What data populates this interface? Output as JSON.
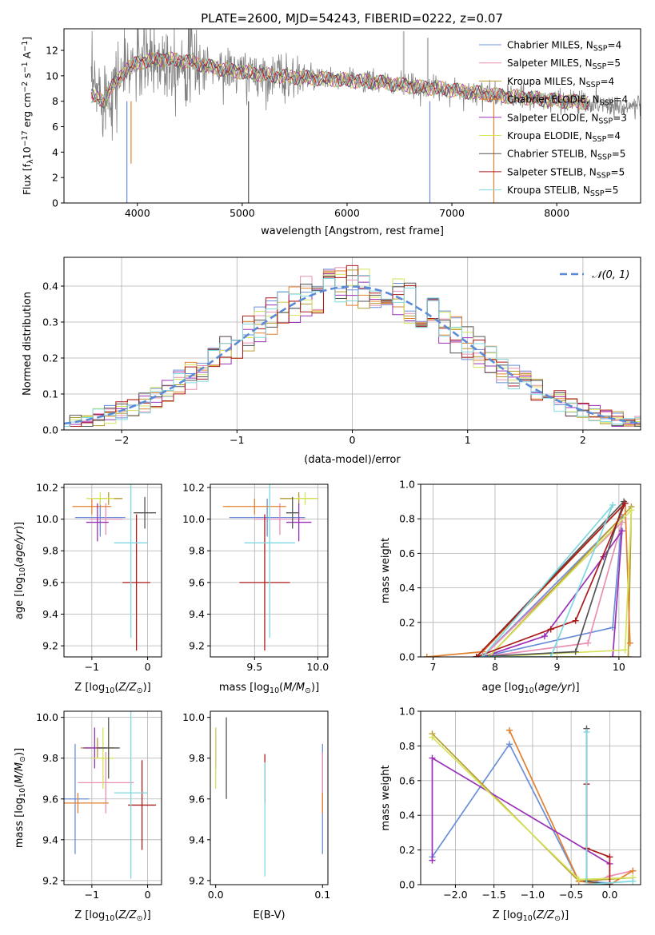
{
  "figure": {
    "title": "PLATE=2600, MJD=54243, FIBERID=0222, z=0.07"
  },
  "colors": {
    "Chabrier MILES": "#6a8fd8",
    "Salpeter MILES": "#e88fb4",
    "Kroupa MILES": "#b79a2e",
    "Chabrier ELODIE": "#e3802f",
    "Salpeter ELODIE": "#9b30b8",
    "Kroupa ELODIE": "#d4e35a",
    "Chabrier STELIB": "#555555",
    "Salpeter STELIB": "#aa1a1a",
    "Kroupa STELIB": "#7fd8e0",
    "data": "#808080",
    "grid": "#b0b0b0"
  },
  "chart_data": [
    {
      "id": "spectrum",
      "type": "line",
      "title": "PLATE=2600, MJD=54243, FIBERID=0222, z=0.07",
      "xlabel": "wavelength [Angstrom, rest frame]",
      "ylabel": "Flux [f_λ 10^-17 erg cm^-2 s^-1 A^-1]",
      "xlim": [
        3300,
        8800
      ],
      "ylim": [
        0,
        13.7
      ],
      "xticks": [
        4000,
        5000,
        6000,
        7000,
        8000
      ],
      "yticks": [
        0,
        2,
        4,
        6,
        8,
        10,
        12
      ],
      "grid": false,
      "legend_position": "top-right",
      "legend": [
        {
          "name": "Chabrier MILES",
          "label": "Chabrier MILES, N",
          "sub": "SSP",
          "tail": "=4"
        },
        {
          "name": "Salpeter MILES",
          "label": "Salpeter MILES, N",
          "sub": "SSP",
          "tail": "=5"
        },
        {
          "name": "Kroupa MILES",
          "label": "Kroupa MILES, N",
          "sub": "SSP",
          "tail": "=4"
        },
        {
          "name": "Chabrier ELODIE",
          "label": "Chabrier ELODIE, N",
          "sub": "SSP",
          "tail": "=4"
        },
        {
          "name": "Salpeter ELODIE",
          "label": "Salpeter ELODIE, N",
          "sub": "SSP",
          "tail": "=3"
        },
        {
          "name": "Kroupa ELODIE",
          "label": "Kroupa ELODIE, N",
          "sub": "SSP",
          "tail": "=4"
        },
        {
          "name": "Chabrier STELIB",
          "label": "Chabrier STELIB, N",
          "sub": "SSP",
          "tail": "=5"
        },
        {
          "name": "Salpeter STELIB",
          "label": "Salpeter STELIB, N",
          "sub": "SSP",
          "tail": "=5"
        },
        {
          "name": "Kroupa STELIB",
          "label": "Kroupa STELIB, N",
          "sub": "SSP",
          "tail": "=5"
        }
      ],
      "continuum": {
        "x": [
          3560,
          3700,
          3800,
          3900,
          4000,
          4100,
          4200,
          4300,
          4500,
          4700,
          4900,
          5100,
          5300,
          5500,
          5700,
          5900,
          6100,
          6300,
          6500,
          6700,
          6900,
          7100,
          7300,
          7500,
          7700,
          7900,
          8100,
          8300,
          8500,
          8700
        ],
        "y": [
          9.0,
          8.6,
          9.5,
          10.6,
          11.0,
          11.2,
          11.3,
          11.3,
          11.1,
          10.7,
          10.4,
          10.2,
          10.0,
          9.9,
          9.8,
          9.7,
          9.6,
          9.5,
          9.3,
          9.1,
          9.0,
          8.8,
          8.6,
          8.4,
          8.3,
          8.1,
          8.0,
          7.9,
          7.7,
          7.6
        ]
      },
      "model_x_range": [
        3560,
        8300
      ],
      "data_x_range": [
        3560,
        8800
      ],
      "dips": [
        {
          "x": 3900,
          "y": 0
        },
        {
          "x": 3940,
          "y": 3.1
        },
        {
          "x": 5060,
          "y": 0
        },
        {
          "x": 6790,
          "y": 0
        },
        {
          "x": 7400,
          "y": 0
        }
      ],
      "spikes": [
        {
          "x": 6540,
          "y": 13.5
        },
        {
          "x": 6770,
          "y": 13.0
        }
      ]
    },
    {
      "id": "residuals",
      "type": "histogram",
      "xlabel": "(data-model)/error",
      "ylabel": "Normed distribution",
      "xlim": [
        -2.5,
        2.5
      ],
      "ylim": [
        0,
        0.48
      ],
      "xticks": [
        -2,
        -1,
        0,
        1,
        2
      ],
      "yticks": [
        0.0,
        0.1,
        0.2,
        0.3,
        0.4
      ],
      "grid": true,
      "legend_position": "top-right",
      "legend": "𝒩(0, 1)",
      "bin_width": 0.1,
      "reference_curve": "normal(0,1) pdf, dashed"
    },
    {
      "id": "age-vs-Z",
      "type": "scatter",
      "xlabel": "Z [log10(Z/Z⊙)]",
      "ylabel": "age [log10(age/yr)]",
      "xlim": [
        -1.5,
        0.25
      ],
      "ylim": [
        9.13,
        10.22
      ],
      "xticks": [
        -1,
        0
      ],
      "yticks": [
        9.2,
        9.4,
        9.6,
        9.8,
        10.0,
        10.2
      ],
      "grid": true,
      "points": [
        {
          "model": "Chabrier MILES",
          "x": -0.85,
          "y": 10.01,
          "xerr": 0.45,
          "yerr": 0.12
        },
        {
          "model": "Salpeter MILES",
          "x": -0.75,
          "y": 10.0,
          "xerr": 0.3,
          "yerr": 0.1
        },
        {
          "model": "Kroupa MILES",
          "x": -0.7,
          "y": 10.13,
          "xerr": 0.25,
          "yerr": 0.04
        },
        {
          "model": "Chabrier ELODIE",
          "x": -1.0,
          "y": 10.08,
          "xerr": 0.35,
          "yerr": 0.05
        },
        {
          "model": "Salpeter ELODIE",
          "x": -0.9,
          "y": 9.98,
          "xerr": 0.2,
          "yerr": 0.12
        },
        {
          "model": "Kroupa ELODIE",
          "x": -0.85,
          "y": 10.13,
          "xerr": 0.25,
          "yerr": 0.04
        },
        {
          "model": "Chabrier STELIB",
          "x": -0.05,
          "y": 10.04,
          "xerr": 0.2,
          "yerr": 0.1
        },
        {
          "model": "Salpeter STELIB",
          "x": -0.2,
          "y": 9.6,
          "xerr": 0.25,
          "yerr": 0.43
        },
        {
          "model": "Kroupa STELIB",
          "x": -0.3,
          "y": 9.85,
          "xerr": 0.3,
          "yerr": 0.6
        }
      ]
    },
    {
      "id": "age-vs-mass",
      "type": "scatter",
      "xlabel": "mass [log10(M/M⊙)]",
      "ylabel": "",
      "xlim": [
        9.15,
        10.08
      ],
      "ylim": [
        9.13,
        10.22
      ],
      "xticks": [
        9.5,
        10.0
      ],
      "yticks": [
        9.2,
        9.4,
        9.6,
        9.8,
        10.0,
        10.2
      ],
      "grid": true,
      "points": [
        {
          "model": "Chabrier MILES",
          "x": 9.6,
          "y": 10.01,
          "xerr": 0.3,
          "yerr": 0.12
        },
        {
          "model": "Salpeter MILES",
          "x": 9.7,
          "y": 10.0,
          "xerr": 0.2,
          "yerr": 0.1
        },
        {
          "model": "Kroupa MILES",
          "x": 9.85,
          "y": 10.13,
          "xerr": 0.15,
          "yerr": 0.04
        },
        {
          "model": "Chabrier ELODIE",
          "x": 9.5,
          "y": 10.08,
          "xerr": 0.25,
          "yerr": 0.05
        },
        {
          "model": "Salpeter ELODIE",
          "x": 9.85,
          "y": 9.98,
          "xerr": 0.1,
          "yerr": 0.12
        },
        {
          "model": "Kroupa ELODIE",
          "x": 9.9,
          "y": 10.13,
          "xerr": 0.1,
          "yerr": 0.04
        },
        {
          "model": "Chabrier STELIB",
          "x": 9.8,
          "y": 10.04,
          "xerr": 0.05,
          "yerr": 0.1
        },
        {
          "model": "Salpeter STELIB",
          "x": 9.58,
          "y": 9.6,
          "xerr": 0.2,
          "yerr": 0.43
        },
        {
          "model": "Kroupa STELIB",
          "x": 9.62,
          "y": 9.85,
          "xerr": 0.2,
          "yerr": 0.6
        }
      ]
    },
    {
      "id": "mass-weight-vs-age",
      "type": "line",
      "xlabel": "age [log10(age/yr)]",
      "ylabel": "mass weight",
      "xlim": [
        6.8,
        10.35
      ],
      "ylim": [
        0,
        1.0
      ],
      "xticks": [
        7,
        8,
        9,
        10
      ],
      "yticks": [
        0.0,
        0.2,
        0.4,
        0.6,
        0.8,
        1.0
      ],
      "grid": true,
      "series": [
        {
          "model": "Chabrier MILES",
          "x": [
            7.8,
            9.9,
            10.05,
            7.8
          ],
          "y": [
            0.0,
            0.17,
            0.81,
            0.0
          ]
        },
        {
          "model": "Salpeter MILES",
          "x": [
            7.8,
            9.5,
            10.05,
            7.8
          ],
          "y": [
            0.0,
            0.08,
            0.78,
            0.0
          ]
        },
        {
          "model": "Kroupa MILES",
          "x": [
            7.9,
            10.15,
            10.2,
            7.9
          ],
          "y": [
            0.0,
            0.0,
            0.87,
            0.0
          ]
        },
        {
          "model": "Chabrier ELODIE",
          "x": [
            6.9,
            7.8,
            10.1,
            10.18
          ],
          "y": [
            0.0,
            0.03,
            0.89,
            0.08
          ]
        },
        {
          "model": "Salpeter ELODIE",
          "x": [
            7.8,
            8.8,
            9.75,
            10.05,
            9.9
          ],
          "y": [
            0.0,
            0.12,
            0.58,
            0.73,
            0.0
          ]
        },
        {
          "model": "Kroupa ELODIE",
          "x": [
            7.9,
            10.1,
            10.2,
            7.9
          ],
          "y": [
            0.0,
            0.04,
            0.85,
            0.0
          ]
        },
        {
          "model": "Chabrier STELIB",
          "x": [
            7.7,
            9.3,
            10.08,
            7.7
          ],
          "y": [
            0.0,
            0.03,
            0.9,
            0.0
          ]
        },
        {
          "model": "Salpeter STELIB",
          "x": [
            7.7,
            8.9,
            9.3,
            10.1,
            7.7
          ],
          "y": [
            0.0,
            0.16,
            0.21,
            0.89,
            0.0
          ]
        },
        {
          "model": "Kroupa STELIB",
          "x": [
            7.8,
            8.9,
            9.9,
            7.8
          ],
          "y": [
            0.0,
            0.0,
            0.88,
            0.0
          ]
        }
      ]
    },
    {
      "id": "mass-vs-Z",
      "type": "scatter",
      "xlabel": "Z [log10(Z/Z⊙)]",
      "ylabel": "mass [log10(M/M⊙)]",
      "xlim": [
        -1.5,
        0.25
      ],
      "ylim": [
        9.18,
        10.03
      ],
      "xticks": [
        -1,
        0
      ],
      "yticks": [
        9.2,
        9.4,
        9.6,
        9.8,
        10.0
      ],
      "grid": true,
      "points": [
        {
          "model": "Chabrier MILES",
          "x": -1.3,
          "y": 9.6,
          "xerr": 0.25,
          "yerr": 0.27
        },
        {
          "model": "Salpeter MILES",
          "x": -0.75,
          "y": 9.68,
          "xerr": 0.5,
          "yerr": 0.15
        },
        {
          "model": "Kroupa MILES",
          "x": -0.9,
          "y": 9.85,
          "xerr": 0.3,
          "yerr": 0.05
        },
        {
          "model": "Chabrier ELODIE",
          "x": -1.25,
          "y": 9.58,
          "xerr": 0.55,
          "yerr": 0.05
        },
        {
          "model": "Salpeter ELODIE",
          "x": -0.95,
          "y": 9.85,
          "xerr": 0.2,
          "yerr": 0.1
        },
        {
          "model": "Kroupa ELODIE",
          "x": -0.8,
          "y": 9.8,
          "xerr": 0.2,
          "yerr": 0.15
        },
        {
          "model": "Chabrier STELIB",
          "x": -0.7,
          "y": 9.85,
          "xerr": 0.2,
          "yerr": 0.15
        },
        {
          "model": "Salpeter STELIB",
          "x": -0.1,
          "y": 9.57,
          "xerr": 0.25,
          "yerr": 0.22
        },
        {
          "model": "Kroupa STELIB",
          "x": -0.3,
          "y": 9.63,
          "xerr": 0.3,
          "yerr": 0.42
        }
      ]
    },
    {
      "id": "mass-vs-ebv",
      "type": "scatter",
      "xlabel": "E(B-V)",
      "ylabel": "",
      "xlim": [
        -0.005,
        0.105
      ],
      "ylim": [
        9.18,
        10.03
      ],
      "xticks": [
        0.0,
        0.1
      ],
      "yticks": [
        9.2,
        9.4,
        9.6,
        9.8,
        10.0
      ],
      "grid": false,
      "points": [
        {
          "model": "Chabrier MILES",
          "x": 0.1,
          "y": 9.6,
          "xerr": 0,
          "yerr": 0.27
        },
        {
          "model": "Salpeter MILES",
          "x": 0.1,
          "y": 9.68,
          "xerr": 0,
          "yerr": 0.15
        },
        {
          "model": "Kroupa MILES",
          "x": 0.0,
          "y": 9.85,
          "xerr": 0,
          "yerr": 0.05
        },
        {
          "model": "Chabrier ELODIE",
          "x": 0.1,
          "y": 9.58,
          "xerr": 0,
          "yerr": 0.05
        },
        {
          "model": "Salpeter ELODIE",
          "x": 0.0,
          "y": 9.85,
          "xerr": 0,
          "yerr": 0.1
        },
        {
          "model": "Kroupa ELODIE",
          "x": 0.0,
          "y": 9.8,
          "xerr": 0,
          "yerr": 0.15
        },
        {
          "model": "Chabrier STELIB",
          "x": 0.01,
          "y": 9.8,
          "xerr": 0,
          "yerr": 0.2
        },
        {
          "model": "Salpeter STELIB",
          "x": 0.046,
          "y": 9.7,
          "xerr": 0,
          "yerr": 0.12
        },
        {
          "model": "Kroupa STELIB",
          "x": 0.046,
          "y": 9.5,
          "xerr": 0,
          "yerr": 0.28
        }
      ]
    },
    {
      "id": "mass-weight-vs-Z",
      "type": "line",
      "xlabel": "Z [log10(Z/Z⊙)]",
      "ylabel": "mass weight",
      "xlim": [
        -2.45,
        0.4
      ],
      "ylim": [
        0,
        1.0
      ],
      "xticks": [
        -2.0,
        -1.5,
        -1.0,
        -0.5,
        0.0
      ],
      "yticks": [
        0.0,
        0.2,
        0.4,
        0.6,
        0.8,
        1.0
      ],
      "grid": true,
      "series": [
        {
          "model": "Chabrier MILES",
          "x": [
            -2.3,
            -1.3,
            -0.4,
            0.0
          ],
          "y": [
            0.16,
            0.81,
            0.02,
            0.01
          ]
        },
        {
          "model": "Salpeter MILES",
          "x": [
            -0.3,
            0.0,
            0.3
          ],
          "y": [
            0.0,
            0.05,
            0.08
          ]
        },
        {
          "model": "Kroupa MILES",
          "x": [
            -2.3,
            -0.4,
            0.3
          ],
          "y": [
            0.87,
            0.02,
            0.04
          ]
        },
        {
          "model": "Chabrier ELODIE",
          "x": [
            -1.3,
            -0.4,
            0.0,
            0.3
          ],
          "y": [
            0.89,
            0.02,
            0.0,
            0.08
          ]
        },
        {
          "model": "Salpeter ELODIE",
          "x": [
            -2.3,
            -2.3,
            0.0
          ],
          "y": [
            0.14,
            0.73,
            0.12
          ]
        },
        {
          "model": "Kroupa ELODIE",
          "x": [
            -2.3,
            -0.4,
            0.3
          ],
          "y": [
            0.85,
            0.03,
            0.04
          ]
        },
        {
          "model": "Chabrier STELIB",
          "x": [
            -0.3,
            -0.3,
            0.0
          ],
          "y": [
            0.9,
            0.02,
            0.0
          ]
        },
        {
          "model": "Salpeter STELIB",
          "x": [
            -0.3,
            -0.3,
            0.0,
            0.0
          ],
          "y": [
            0.58,
            0.21,
            0.16,
            0.0
          ]
        },
        {
          "model": "Kroupa STELIB",
          "x": [
            -0.3,
            -0.3,
            0.3
          ],
          "y": [
            0.88,
            0.0,
            0.02
          ]
        }
      ]
    }
  ]
}
